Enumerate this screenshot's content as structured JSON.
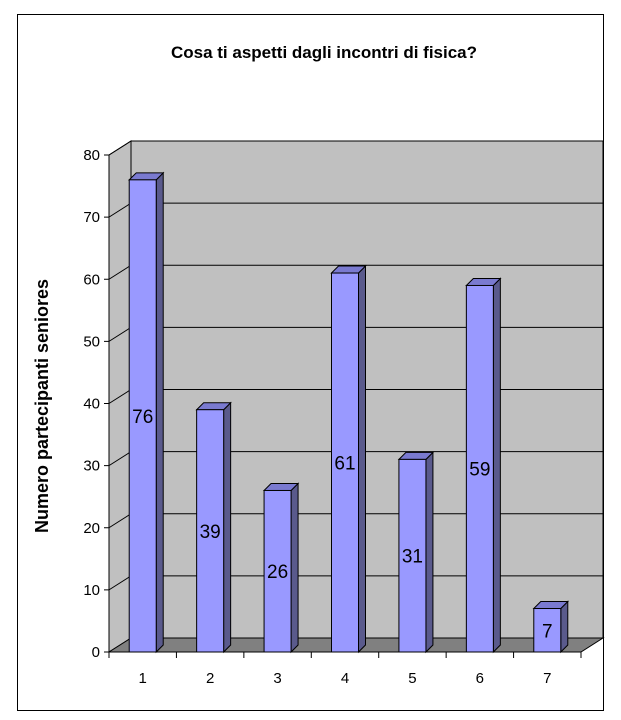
{
  "chart_data": {
    "type": "bar",
    "title": "Cosa ti aspetti dagli incontri di fisica?",
    "xlabel": "",
    "ylabel": "Numero partecipanti seniores",
    "categories": [
      "1",
      "2",
      "3",
      "4",
      "5",
      "6",
      "7"
    ],
    "values": [
      76,
      39,
      26,
      61,
      31,
      59,
      7
    ],
    "ylim": [
      0,
      80
    ],
    "yticks": [
      "0",
      "10",
      "20",
      "30",
      "40",
      "50",
      "60",
      "70",
      "80"
    ],
    "data_labels": [
      "76",
      "39",
      "26",
      "61",
      "31",
      "59",
      "7"
    ],
    "grid": true,
    "legend": "none",
    "style": "3d-column",
    "colors": {
      "bar_front": "#9999ff",
      "bar_side": "#5a5a8c",
      "bar_top": "#7a7ad0",
      "wall": "#c0c0c0",
      "floor": "#808080"
    }
  }
}
